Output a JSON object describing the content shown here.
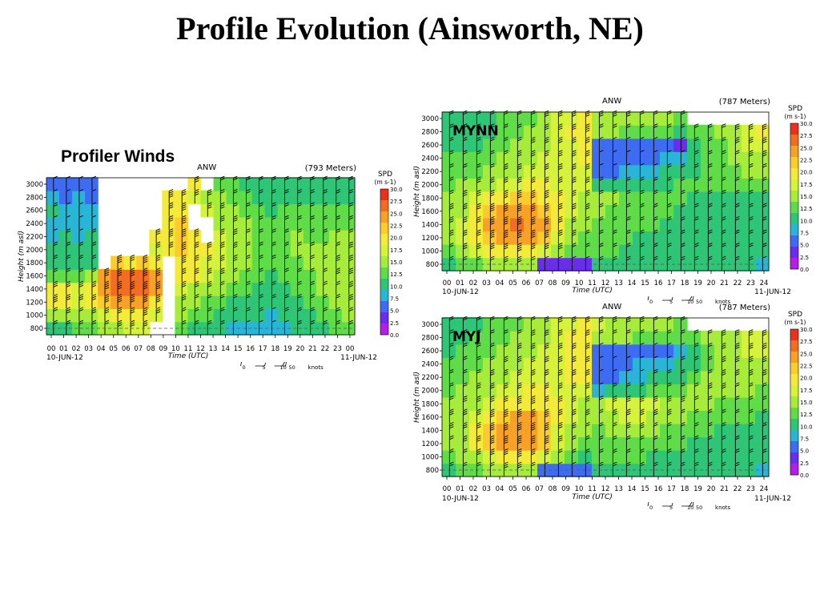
{
  "slide": {
    "title": "Profile Evolution (Ainsworth, NE)",
    "subtitle": "Profiler Winds"
  },
  "chart_data": [
    {
      "id": "profiler",
      "type": "heatmap",
      "station": "ANW",
      "elevation": "(793 Meters)",
      "run_label": "",
      "ylabel": "Height (m asl)",
      "xlabel": "Time (UTC)",
      "date_start": "10-JUN-12",
      "date_end": "11-JUN-12",
      "x_ticks": [
        "00",
        "01",
        "02",
        "03",
        "04",
        "05",
        "06",
        "07",
        "08",
        "09",
        "10",
        "11",
        "12",
        "13",
        "14",
        "15",
        "16",
        "17",
        "18",
        "19",
        "20",
        "21",
        "22",
        "23",
        "00"
      ],
      "y_ticks": [
        "800",
        "1000",
        "1200",
        "1400",
        "1600",
        "1800",
        "2000",
        "2200",
        "2400",
        "2600",
        "2800",
        "3000"
      ],
      "ylim": [
        800,
        3000
      ],
      "colorbar": {
        "title": "SPD",
        "unit": "(m s-1)",
        "labels": [
          "30.0",
          "27.5",
          "25.0",
          "22.5",
          "20.0",
          "17.5",
          "15.0",
          "12.5",
          "10.0",
          "7.5",
          "5.0",
          "2.5",
          "0.0"
        ],
        "colors": [
          "#e8321e",
          "#f26d22",
          "#f7a126",
          "#fccb2c",
          "#f4ea3a",
          "#d6f23a",
          "#a8ec3b",
          "#5fdc48",
          "#2ec576",
          "#29b6d6",
          "#3d6cf2",
          "#6a2df0",
          "#b41ee8"
        ]
      },
      "legend": {
        "zero": "0",
        "five": "5",
        "ten": "10",
        "fifty": "50",
        "unit": "knots"
      },
      "speed_columns": [
        [
          9,
          14,
          21,
          20,
          12,
          11,
          10,
          8,
          8,
          9,
          7,
          6
        ],
        [
          10,
          15,
          20,
          19,
          12,
          10,
          9,
          9,
          8,
          8,
          6,
          6
        ],
        [
          12,
          14,
          18,
          18,
          13,
          10,
          9,
          8,
          8,
          7,
          7,
          6
        ],
        [
          13,
          16,
          20,
          19,
          14,
          11,
          9,
          9,
          8,
          7,
          6,
          6
        ],
        [
          14,
          17,
          22,
          24,
          25,
          null,
          null,
          null,
          null,
          null,
          null,
          null
        ],
        [
          16,
          19,
          24,
          27,
          27,
          22,
          null,
          null,
          null,
          null,
          null,
          null
        ],
        [
          17,
          20,
          26,
          28,
          27,
          20,
          null,
          null,
          null,
          null,
          null,
          null
        ],
        [
          18,
          21,
          24,
          27,
          27,
          23,
          null,
          null,
          null,
          null,
          null,
          null
        ],
        [
          null,
          17,
          21,
          26,
          24,
          20,
          18,
          19,
          null,
          null,
          null,
          null
        ],
        [
          null,
          null,
          null,
          null,
          null,
          null,
          20,
          21,
          20,
          20,
          21,
          null
        ],
        [
          12,
          14,
          16,
          18,
          20,
          21,
          22,
          22,
          22,
          21,
          20,
          null
        ],
        [
          11,
          13,
          14,
          16,
          19,
          20,
          20,
          21,
          null,
          null,
          18,
          19
        ],
        [
          10,
          12,
          13,
          15,
          17,
          18,
          19,
          null,
          null,
          17,
          16,
          null
        ],
        [
          9,
          11,
          12,
          14,
          15,
          17,
          18,
          17,
          16,
          15,
          14,
          13
        ],
        [
          8,
          10,
          11,
          12,
          14,
          15,
          16,
          16,
          15,
          14,
          13,
          12
        ],
        [
          8,
          9,
          11,
          12,
          13,
          14,
          14,
          14,
          14,
          13,
          12,
          11
        ],
        [
          7,
          9,
          10,
          11,
          12,
          13,
          13,
          13,
          13,
          12,
          11,
          10
        ],
        [
          7,
          8,
          9,
          10,
          11,
          12,
          12,
          12,
          12,
          11,
          10,
          10
        ],
        [
          8,
          9,
          10,
          11,
          12,
          13,
          13,
          13,
          13,
          12,
          11,
          10
        ],
        [
          9,
          10,
          11,
          12,
          13,
          13,
          14,
          14,
          13,
          12,
          11,
          10
        ],
        [
          10,
          11,
          12,
          13,
          13,
          14,
          14,
          13,
          13,
          12,
          11,
          10
        ],
        [
          11,
          12,
          13,
          14,
          14,
          14,
          14,
          13,
          12,
          12,
          11,
          10
        ],
        [
          12,
          13,
          14,
          14,
          15,
          15,
          14,
          14,
          13,
          12,
          11,
          10
        ],
        [
          13,
          14,
          15,
          15,
          16,
          16,
          15,
          14,
          13,
          12,
          11,
          10
        ]
      ]
    },
    {
      "id": "mynn",
      "type": "heatmap",
      "station": "ANW",
      "elevation": "(787 Meters)",
      "run_label": "MYNN",
      "ylabel": "Height (m asl)",
      "xlabel": "Time (UTC)",
      "date_start": "10-JUN-12",
      "date_end": "11-JUN-12",
      "x_ticks": [
        "00",
        "01",
        "02",
        "03",
        "04",
        "05",
        "06",
        "07",
        "08",
        "09",
        "10",
        "11",
        "12",
        "13",
        "14",
        "15",
        "16",
        "17",
        "18",
        "19",
        "20",
        "21",
        "22",
        "23",
        "24"
      ],
      "y_ticks": [
        "800",
        "1000",
        "1200",
        "1400",
        "1600",
        "1800",
        "2000",
        "2200",
        "2400",
        "2600",
        "2800",
        "3000"
      ],
      "ylim": [
        800,
        3000
      ],
      "colorbar": {
        "title": "SPD",
        "unit": "(m s-1)",
        "labels": [
          "30.0",
          "27.5",
          "25.0",
          "22.5",
          "20.0",
          "17.5",
          "15.0",
          "12.5",
          "10.0",
          "7.5",
          "5.0",
          "2.5",
          "0.0"
        ],
        "colors": [
          "#e8321e",
          "#f26d22",
          "#f7a126",
          "#fccb2c",
          "#f4ea3a",
          "#d6f23a",
          "#a8ec3b",
          "#5fdc48",
          "#2ec576",
          "#29b6d6",
          "#3d6cf2",
          "#6a2df0",
          "#b41ee8"
        ]
      },
      "legend": {
        "zero": "0",
        "five": "5",
        "ten": "10",
        "fifty": "50",
        "unit": "knots"
      },
      "speed_columns": [
        [
          11,
          13,
          15,
          15,
          15,
          14,
          13,
          12,
          12,
          11,
          10,
          10
        ],
        [
          12,
          15,
          17,
          17,
          16,
          15,
          14,
          13,
          12,
          11,
          10,
          10
        ],
        [
          13,
          17,
          20,
          20,
          19,
          17,
          15,
          13,
          12,
          11,
          11,
          10
        ],
        [
          14,
          19,
          23,
          24,
          22,
          19,
          16,
          14,
          13,
          12,
          11,
          11
        ],
        [
          15,
          20,
          25,
          26,
          24,
          21,
          17,
          15,
          14,
          13,
          12,
          12
        ],
        [
          15,
          21,
          26,
          27,
          25,
          22,
          18,
          16,
          15,
          14,
          13,
          12
        ],
        [
          14,
          20,
          25,
          26,
          25,
          22,
          19,
          17,
          16,
          15,
          14,
          13
        ],
        [
          3,
          18,
          23,
          24,
          23,
          21,
          19,
          17,
          17,
          16,
          16,
          15
        ],
        [
          3,
          15,
          18,
          19,
          20,
          19,
          18,
          17,
          17,
          18,
          18,
          17
        ],
        [
          3,
          13,
          15,
          16,
          17,
          18,
          18,
          18,
          17,
          18,
          19,
          18
        ],
        [
          3,
          12,
          13,
          14,
          15,
          16,
          17,
          18,
          19,
          20,
          21,
          20
        ],
        [
          11,
          12,
          12,
          13,
          14,
          14,
          9,
          6,
          5,
          5,
          14,
          16
        ],
        [
          11,
          12,
          12,
          13,
          13,
          14,
          10,
          6,
          5,
          5,
          14,
          15
        ],
        [
          11,
          11,
          12,
          12,
          13,
          13,
          10,
          7,
          6,
          5,
          13,
          15
        ],
        [
          10,
          11,
          11,
          12,
          12,
          13,
          11,
          8,
          6,
          5,
          13,
          14
        ],
        [
          10,
          11,
          11,
          12,
          12,
          12,
          11,
          8,
          6,
          6,
          12,
          14
        ],
        [
          10,
          11,
          11,
          11,
          12,
          12,
          11,
          9,
          7,
          6,
          12,
          14
        ],
        [
          10,
          10,
          11,
          11,
          11,
          12,
          12,
          10,
          8,
          3,
          11,
          13
        ],
        [
          10,
          10,
          10,
          11,
          11,
          11,
          12,
          11,
          10,
          10,
          13,
          null
        ],
        [
          9,
          10,
          10,
          11,
          11,
          11,
          12,
          12,
          12,
          12,
          13,
          null
        ],
        [
          9,
          10,
          10,
          10,
          11,
          11,
          12,
          13,
          13,
          13,
          14,
          null
        ],
        [
          9,
          10,
          10,
          10,
          10,
          11,
          12,
          13,
          14,
          15,
          16,
          null
        ],
        [
          9,
          9,
          10,
          10,
          10,
          11,
          12,
          14,
          16,
          17,
          17,
          null
        ],
        [
          8,
          9,
          9,
          10,
          10,
          11,
          12,
          14,
          16,
          18,
          19,
          null
        ]
      ]
    },
    {
      "id": "myj",
      "type": "heatmap",
      "station": "ANW",
      "elevation": "(787 Meters)",
      "run_label": "MYJ",
      "ylabel": "Height (m asl)",
      "xlabel": "Time (UTC)",
      "date_start": "10-JUN-12",
      "date_end": "11-JUN-12",
      "x_ticks": [
        "00",
        "01",
        "02",
        "03",
        "04",
        "05",
        "06",
        "07",
        "08",
        "09",
        "10",
        "11",
        "12",
        "13",
        "14",
        "15",
        "16",
        "17",
        "18",
        "19",
        "20",
        "21",
        "22",
        "23",
        "24"
      ],
      "y_ticks": [
        "800",
        "1000",
        "1200",
        "1400",
        "1600",
        "1800",
        "2000",
        "2200",
        "2400",
        "2600",
        "2800",
        "3000"
      ],
      "ylim": [
        800,
        3000
      ],
      "colorbar": {
        "title": "SPD",
        "unit": "(m s-1)",
        "labels": [
          "30.0",
          "27.5",
          "25.0",
          "22.5",
          "20.0",
          "17.5",
          "15.0",
          "12.5",
          "10.0",
          "7.5",
          "5.0",
          "2.5",
          "0.0"
        ],
        "colors": [
          "#e8321e",
          "#f26d22",
          "#f7a126",
          "#fccb2c",
          "#f4ea3a",
          "#d6f23a",
          "#a8ec3b",
          "#5fdc48",
          "#2ec576",
          "#29b6d6",
          "#3d6cf2",
          "#6a2df0",
          "#b41ee8"
        ]
      },
      "legend": {
        "zero": "0",
        "five": "5",
        "ten": "10",
        "fifty": "50",
        "unit": "knots"
      },
      "speed_columns": [
        [
          11,
          13,
          14,
          15,
          15,
          14,
          13,
          12,
          12,
          11,
          11,
          10
        ],
        [
          12,
          14,
          16,
          16,
          16,
          15,
          14,
          13,
          12,
          12,
          11,
          11
        ],
        [
          13,
          16,
          19,
          19,
          18,
          16,
          15,
          14,
          13,
          12,
          12,
          11
        ],
        [
          14,
          18,
          22,
          23,
          21,
          18,
          16,
          15,
          14,
          13,
          12,
          12
        ],
        [
          15,
          20,
          24,
          25,
          23,
          20,
          17,
          16,
          15,
          14,
          13,
          12
        ],
        [
          15,
          21,
          25,
          26,
          24,
          21,
          18,
          17,
          16,
          15,
          14,
          13
        ],
        [
          14,
          20,
          24,
          25,
          24,
          21,
          19,
          18,
          17,
          16,
          15,
          14
        ],
        [
          5,
          17,
          22,
          23,
          22,
          20,
          19,
          18,
          17,
          17,
          16,
          15
        ],
        [
          4,
          14,
          17,
          18,
          19,
          19,
          18,
          18,
          18,
          18,
          18,
          17
        ],
        [
          4,
          12,
          14,
          15,
          17,
          18,
          18,
          19,
          19,
          19,
          19,
          18
        ],
        [
          4,
          11,
          13,
          14,
          15,
          16,
          17,
          19,
          20,
          20,
          20,
          19
        ],
        [
          11,
          12,
          12,
          13,
          14,
          14,
          8,
          6,
          5,
          5,
          14,
          17
        ],
        [
          11,
          12,
          13,
          14,
          16,
          17,
          9,
          6,
          5,
          5,
          14,
          16
        ],
        [
          11,
          12,
          13,
          15,
          17,
          18,
          10,
          7,
          6,
          6,
          14,
          15
        ],
        [
          11,
          12,
          13,
          15,
          17,
          18,
          11,
          8,
          7,
          6,
          13,
          15
        ],
        [
          10,
          11,
          12,
          14,
          16,
          17,
          12,
          9,
          7,
          6,
          13,
          14
        ],
        [
          10,
          11,
          12,
          13,
          15,
          16,
          12,
          10,
          8,
          6,
          12,
          14
        ],
        [
          10,
          11,
          12,
          13,
          14,
          15,
          13,
          11,
          9,
          7,
          12,
          13
        ],
        [
          10,
          11,
          11,
          12,
          13,
          14,
          14,
          12,
          11,
          11,
          13,
          null
        ],
        [
          10,
          10,
          11,
          12,
          13,
          14,
          15,
          14,
          13,
          13,
          14,
          null
        ],
        [
          9,
          10,
          11,
          11,
          12,
          13,
          15,
          15,
          15,
          15,
          15,
          null
        ],
        [
          9,
          10,
          10,
          11,
          12,
          13,
          14,
          15,
          16,
          16,
          16,
          null
        ],
        [
          9,
          10,
          10,
          11,
          12,
          13,
          14,
          15,
          16,
          17,
          17,
          null
        ],
        [
          8,
          9,
          10,
          10,
          11,
          12,
          13,
          15,
          16,
          17,
          18,
          null
        ]
      ]
    }
  ]
}
